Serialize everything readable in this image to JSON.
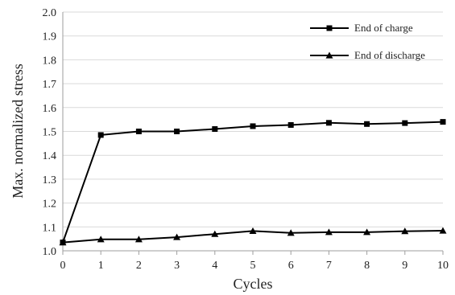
{
  "chart_data": {
    "type": "line",
    "title": "",
    "xlabel": "Cycles",
    "ylabel": "Max. normalized stress",
    "x": [
      0,
      1,
      2,
      3,
      4,
      5,
      6,
      7,
      8,
      9,
      10
    ],
    "xlim": [
      0,
      10
    ],
    "ylim": [
      1.0,
      2.0
    ],
    "xticks": [
      "0",
      "1",
      "2",
      "3",
      "4",
      "5",
      "6",
      "7",
      "8",
      "9",
      "10"
    ],
    "yticks": [
      "1.0",
      "1.1",
      "1.2",
      "1.3",
      "1.4",
      "1.5",
      "1.6",
      "1.7",
      "1.8",
      "1.9",
      "2.0"
    ],
    "grid": "horizontal",
    "legend_position": "top-right",
    "series": [
      {
        "name": "End of charge",
        "marker": "square",
        "color": "#000000",
        "values": [
          1.035,
          1.485,
          1.5,
          1.5,
          1.51,
          1.522,
          1.527,
          1.536,
          1.531,
          1.535,
          1.54
        ]
      },
      {
        "name": "End of discharge",
        "marker": "triangle",
        "color": "#000000",
        "values": [
          1.035,
          1.048,
          1.048,
          1.057,
          1.07,
          1.083,
          1.075,
          1.078,
          1.078,
          1.082,
          1.084
        ]
      }
    ]
  }
}
